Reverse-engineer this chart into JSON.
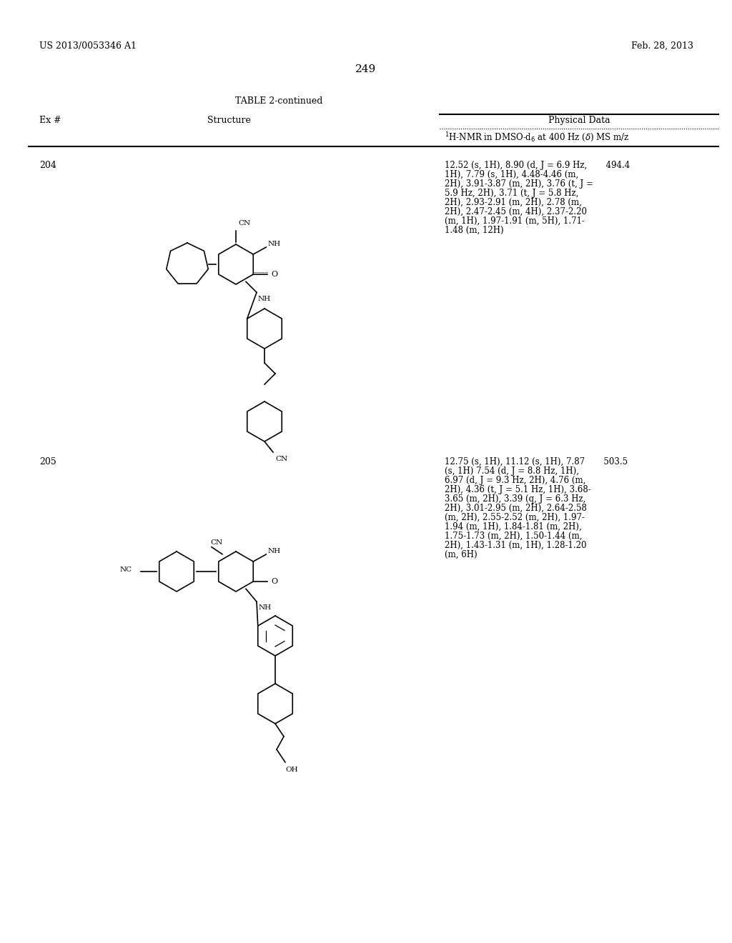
{
  "bg_color": "#ffffff",
  "text_color": "#000000",
  "page_header_left": "US 2013/0053346 A1",
  "page_header_right": "Feb. 28, 2013",
  "page_number": "249",
  "table_title": "TABLE 2-continued",
  "col_headers": [
    "Ex #",
    "Structure",
    "Physical Data"
  ],
  "col_subheader": "¹H-NMR in DMSO-d₆ at 400 Hz (δ) MS m/z",
  "entries": [
    {
      "ex_num": "204",
      "nmr_data": "12.52 (s, 1H), 8.90 (d, J = 6.9 Hz, 1H), 7.79 (s, 1H), 4.48-4.46 (m, 2H), 3.91-3.87 (m, 2H), 3.76 (t, J = 5.9 Hz, 2H), 3.71 (t, J = 5.8 Hz, 2H), 2.93-2.91 (m, 2H), 2.78 (m, 2H), 2.47-2.45 (m, 4H), 2.37-2.20 (m, 1H), 1.97-1.91 (m, 5H), 1.71-1.48 (m, 12H)",
      "ms": "494.4"
    },
    {
      "ex_num": "205",
      "nmr_data": "12.75 (s, 1H), 11.12 (s, 1H), 7.87 (s, 1H) 7.54 (d, J = 8.8 Hz, 1H), 6.97 (d, J = 9.3 Hz, 2H), 4.76 (m, 2H), 4.36 (t, J = 5.1 Hz, 1H), 3.68-3.65 (m, 2H), 3.39 (q, J = 6.3 Hz, 2H), 3.01-2.95 (m, 2H), 2.64-2.58 (m, 2H), 2.55-2.52 (m, 2H), 1.97-1.94 (m, 1H), 1.84-1.81 (m, 2H), 1.75-1.73 (m, 2H), 1.50-1.44 (m, 2H), 1.43-1.31 (m, 1H), 1.28-1.20 (m, 6H)",
      "ms": "503.5"
    }
  ]
}
